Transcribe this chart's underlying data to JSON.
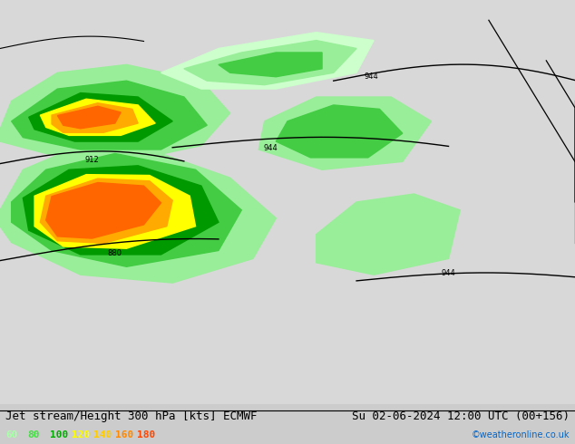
{
  "title_left": "Jet stream/Height 300 hPa [kts] ECMWF",
  "title_right": "Su 02-06-2024 12:00 UTC (00+156)",
  "credit": "©weatheronline.co.uk",
  "legend_values": [
    60,
    80,
    100,
    120,
    140,
    160,
    180
  ],
  "legend_colors_display": [
    "#aaffaa",
    "#44dd44",
    "#00aa00",
    "#ffff00",
    "#ffcc00",
    "#ff8800",
    "#ff4400"
  ],
  "background_color": "#d8d8d8",
  "land_color": "#90ee90",
  "fig_width": 6.34,
  "fig_height": 4.9,
  "title_fontsize": 9,
  "legend_fontsize": 8,
  "bar_color": "#cccccc"
}
